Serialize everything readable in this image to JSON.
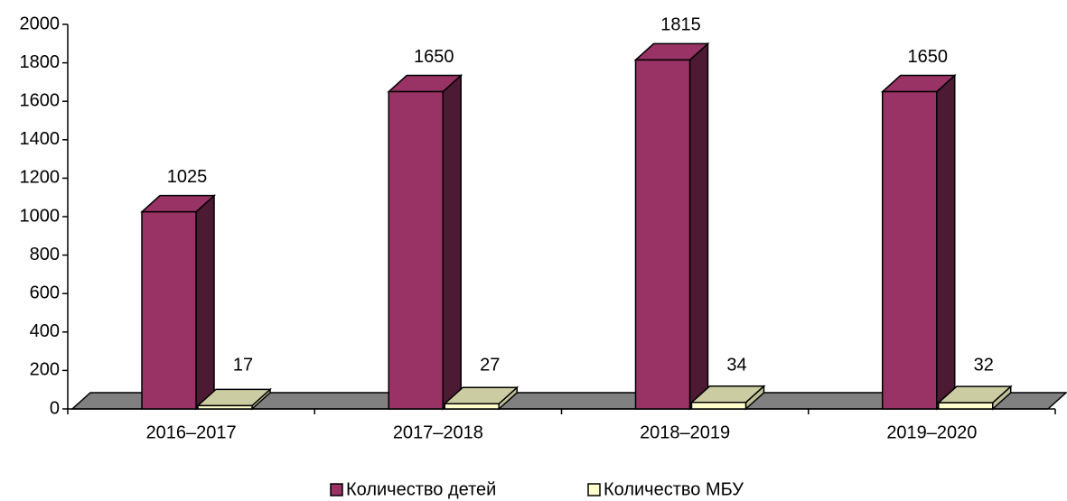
{
  "chart_data": {
    "type": "bar",
    "categories": [
      "2016–2017",
      "2017–2018",
      "2018–2019",
      "2019–2020"
    ],
    "series": [
      {
        "name": "Количество детей",
        "color": "#993366",
        "values": [
          1025,
          1650,
          1815,
          1650
        ]
      },
      {
        "name": "Количество МБУ",
        "color": "#ffffcc",
        "values": [
          17,
          27,
          34,
          32
        ]
      }
    ],
    "ylim": [
      0,
      2000
    ],
    "yticks": [
      0,
      200,
      400,
      600,
      800,
      1000,
      1200,
      1400,
      1600,
      1800,
      2000
    ],
    "legend": "bottom"
  }
}
